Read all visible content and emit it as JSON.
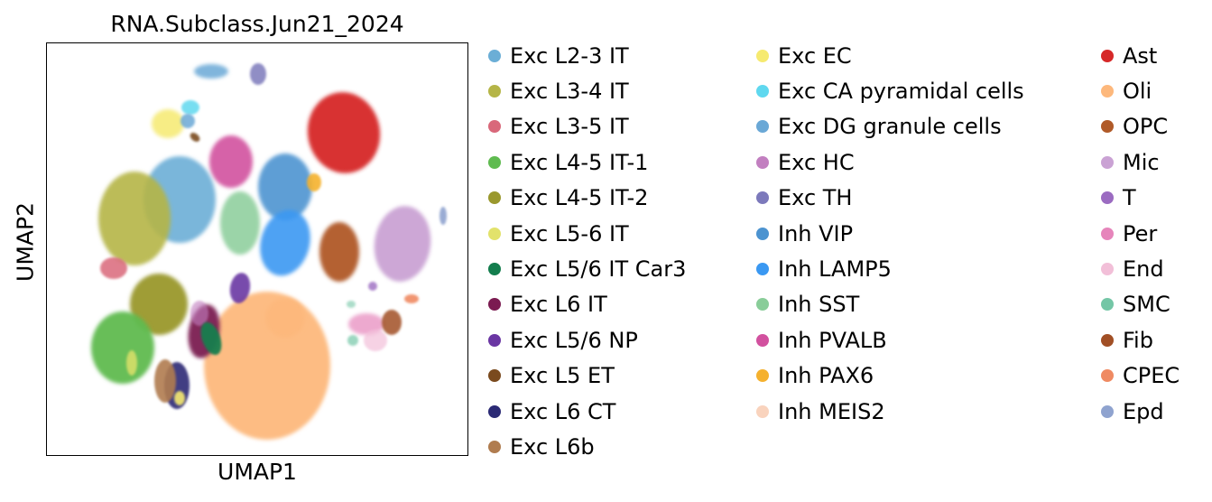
{
  "chart_data": {
    "type": "scatter",
    "title": "RNA.Subclass.Jun21_2024",
    "xlabel": "UMAP1",
    "ylabel": "UMAP2",
    "ticks": "none",
    "grid": false,
    "legend_position": "right, three columns",
    "series": [
      {
        "name": "Exc L2-3 IT",
        "color": "#6baed6"
      },
      {
        "name": "Exc L3-4 IT",
        "color": "#b5b547"
      },
      {
        "name": "Exc L3-5 IT",
        "color": "#d9687a"
      },
      {
        "name": "Exc L4-5 IT-1",
        "color": "#5fbb50"
      },
      {
        "name": "Exc L4-5 IT-2",
        "color": "#9a982d"
      },
      {
        "name": "Exc L5-6 IT",
        "color": "#e2e26b"
      },
      {
        "name": "Exc L5/6 IT Car3",
        "color": "#137d4d"
      },
      {
        "name": "Exc L6 IT",
        "color": "#7b1b51"
      },
      {
        "name": "Exc L5/6 NP",
        "color": "#6a36a3"
      },
      {
        "name": "Exc L5 ET",
        "color": "#7a4a1e"
      },
      {
        "name": "Exc L6 CT",
        "color": "#2b2a75"
      },
      {
        "name": "Exc L6b",
        "color": "#b07c4f"
      },
      {
        "name": "Exc EC",
        "color": "#f6ea70"
      },
      {
        "name": "Exc CA pyramidal cells",
        "color": "#5fd8ef"
      },
      {
        "name": "Exc DG granule cells",
        "color": "#6aa8d6"
      },
      {
        "name": "Exc HC",
        "color": "#c27fc0"
      },
      {
        "name": "Exc TH",
        "color": "#7c79bb"
      },
      {
        "name": "Inh VIP",
        "color": "#4c93d0"
      },
      {
        "name": "Inh LAMP5",
        "color": "#3a98f2"
      },
      {
        "name": "Inh SST",
        "color": "#89cd99"
      },
      {
        "name": "Inh PVALB",
        "color": "#d2519f"
      },
      {
        "name": "Inh PAX6",
        "color": "#f5b12e"
      },
      {
        "name": "Inh MEIS2",
        "color": "#f9d3bd"
      },
      {
        "name": "Ast",
        "color": "#d62828"
      },
      {
        "name": "Oli",
        "color": "#fdb87c"
      },
      {
        "name": "OPC",
        "color": "#b05a28"
      },
      {
        "name": "Mic",
        "color": "#caa2d4"
      },
      {
        "name": "T",
        "color": "#9b6bc1"
      },
      {
        "name": "Per",
        "color": "#e685bb"
      },
      {
        "name": "End",
        "color": "#f2bfd8"
      },
      {
        "name": "SMC",
        "color": "#74c6a6"
      },
      {
        "name": "Fib",
        "color": "#a14f25"
      },
      {
        "name": "CPEC",
        "color": "#ef8a62"
      },
      {
        "name": "Epd",
        "color": "#8fa3cf"
      }
    ]
  }
}
